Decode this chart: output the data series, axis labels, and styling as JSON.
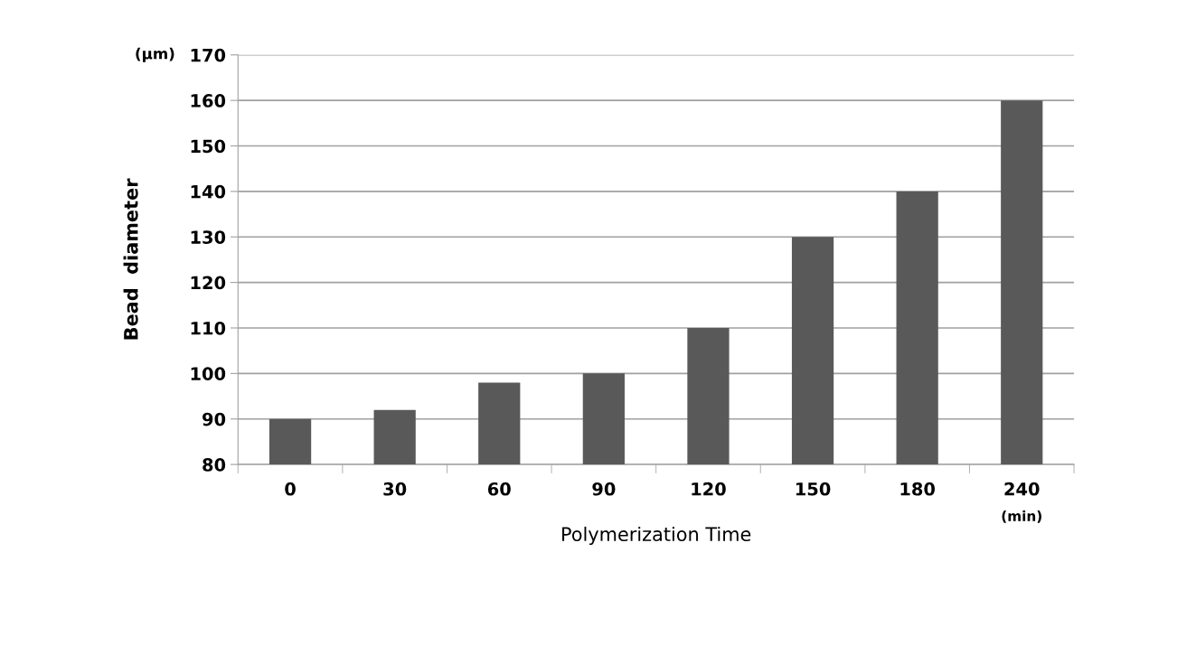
{
  "chart_data": {
    "type": "bar",
    "xlabel": "Polymerization Time",
    "ylabel": "Bead  diameter",
    "categories": [
      "0",
      "30",
      "60",
      "90",
      "120",
      "150",
      "180",
      "240"
    ],
    "values": [
      90,
      92,
      98,
      100,
      110,
      130,
      140,
      160
    ],
    "color": "#595959",
    "ylim": [
      80,
      170
    ],
    "yticks": [
      80,
      90,
      100,
      110,
      120,
      130,
      140,
      150,
      160,
      170
    ],
    "grid": "y",
    "annotations": [
      "(μm)",
      "(min)"
    ]
  }
}
